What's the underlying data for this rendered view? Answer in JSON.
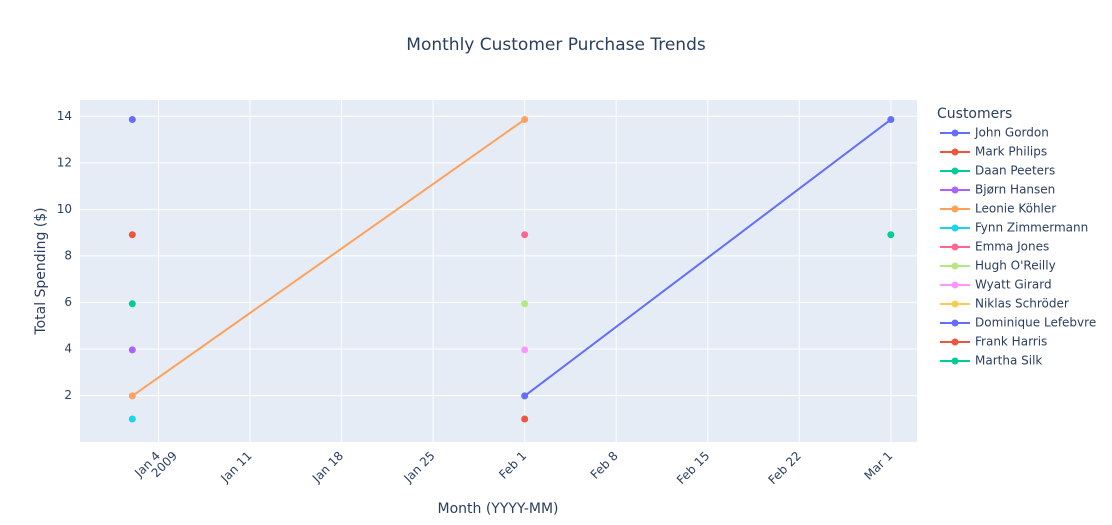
{
  "chart_data": {
    "type": "line",
    "title": "Monthly Customer Purchase Trends",
    "xlabel": "Month (YYYY-MM)",
    "ylabel": "Total Spending ($)",
    "xlim": [
      "2008-12-29",
      "2009-03-03"
    ],
    "ylim": [
      0,
      14.7
    ],
    "yticks": [
      2,
      4,
      6,
      8,
      10,
      12,
      14
    ],
    "xticks": [
      {
        "date": "2009-01-04",
        "label": "Jan 4",
        "sublabel": "2009"
      },
      {
        "date": "2009-01-11",
        "label": "Jan 11"
      },
      {
        "date": "2009-01-18",
        "label": "Jan 18"
      },
      {
        "date": "2009-01-25",
        "label": "Jan 25"
      },
      {
        "date": "2009-02-01",
        "label": "Feb 1"
      },
      {
        "date": "2009-02-08",
        "label": "Feb 8"
      },
      {
        "date": "2009-02-15",
        "label": "Feb 15"
      },
      {
        "date": "2009-02-22",
        "label": "Feb 22"
      },
      {
        "date": "2009-03-01",
        "label": "Mar 1"
      }
    ],
    "grid": true,
    "legend_title": "Customers",
    "legend_position": "right",
    "series": [
      {
        "name": "John Gordon",
        "color": "#636efa",
        "points": [
          {
            "x": "2009-01-02",
            "y": 13.86
          }
        ]
      },
      {
        "name": "Mark Philips",
        "color": "#ef553b",
        "points": [
          {
            "x": "2009-01-02",
            "y": 8.91
          }
        ]
      },
      {
        "name": "Daan Peeters",
        "color": "#00cc96",
        "points": [
          {
            "x": "2009-01-02",
            "y": 5.94
          }
        ]
      },
      {
        "name": "Bjørn Hansen",
        "color": "#ab63fa",
        "points": [
          {
            "x": "2009-01-02",
            "y": 3.96
          }
        ]
      },
      {
        "name": "Leonie Köhler",
        "color": "#ffa15a",
        "points": [
          {
            "x": "2009-01-02",
            "y": 1.98
          },
          {
            "x": "2009-02-01",
            "y": 13.86
          }
        ]
      },
      {
        "name": "Fynn Zimmermann",
        "color": "#19d3f3",
        "points": [
          {
            "x": "2009-01-02",
            "y": 0.99
          }
        ]
      },
      {
        "name": "Emma Jones",
        "color": "#ff6692",
        "points": [
          {
            "x": "2009-02-01",
            "y": 8.91
          }
        ]
      },
      {
        "name": "Hugh O'Reilly",
        "color": "#b6e880",
        "points": [
          {
            "x": "2009-02-01",
            "y": 5.94
          }
        ]
      },
      {
        "name": "Wyatt Girard",
        "color": "#ff97ff",
        "points": [
          {
            "x": "2009-02-01",
            "y": 3.96
          }
        ]
      },
      {
        "name": "Niklas Schröder",
        "color": "#fecb52",
        "points": [
          {
            "x": "2009-02-01",
            "y": 1.98
          }
        ]
      },
      {
        "name": "Dominique Lefebvre",
        "color": "#636efa",
        "points": [
          {
            "x": "2009-02-01",
            "y": 1.98
          },
          {
            "x": "2009-03-01",
            "y": 13.86
          }
        ]
      },
      {
        "name": "Frank Harris",
        "color": "#ef553b",
        "points": [
          {
            "x": "2009-02-01",
            "y": 0.99
          }
        ]
      },
      {
        "name": "Martha Silk",
        "color": "#00cc96",
        "points": [
          {
            "x": "2009-03-01",
            "y": 8.91
          }
        ]
      }
    ]
  }
}
